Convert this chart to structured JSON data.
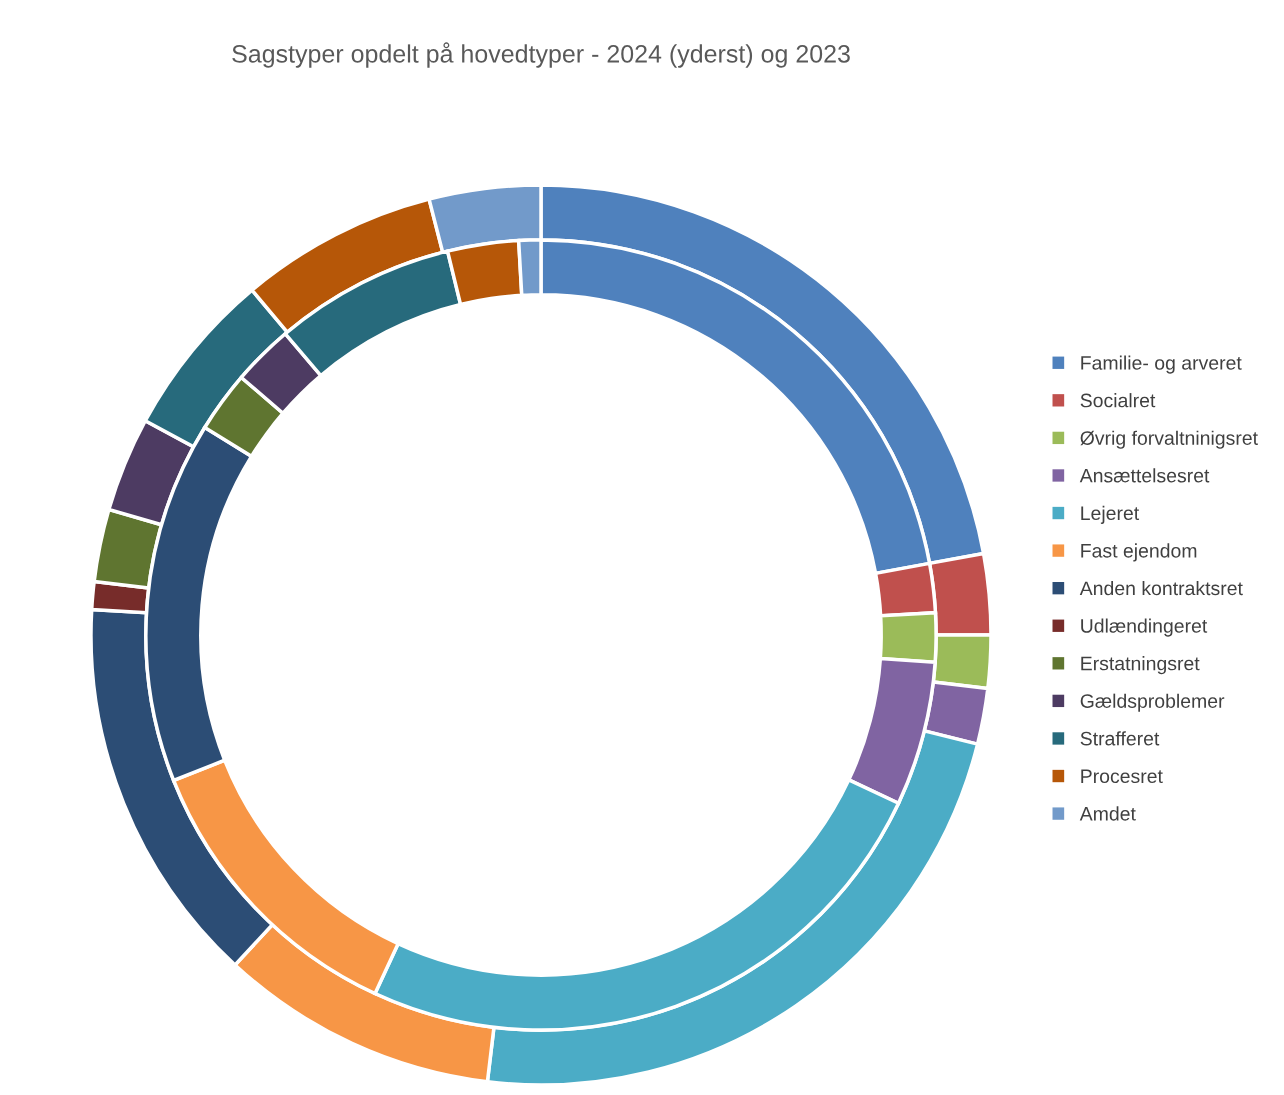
{
  "chart_data": {
    "type": "donut",
    "title": "Sagstyper opdelt på hovedtyper - 2024 (yderst) og 2023",
    "categories": [
      "Familie- og arveret",
      "Socialret",
      "Øvrig forvaltninigsret",
      "Ansættelsesret",
      "Lejeret",
      "Fast ejendom",
      "Anden kontraktsret",
      "Udlændingeret",
      "Erstatningsret",
      "Gældsproblemer",
      "Strafferet",
      "Procesret",
      "Amdet"
    ],
    "colors": [
      "#4f81bd",
      "#c0504d",
      "#9bbb59",
      "#8064a2",
      "#4bacc6",
      "#f79646",
      "#2c4d75",
      "#772c2a",
      "#5f7530",
      "#4d3b62",
      "#276a7c",
      "#b65708",
      "#729aca"
    ],
    "series": [
      {
        "values": [
          22.1,
          2.9,
          1.9,
          2.0,
          23.0,
          10.0,
          14.0,
          1.0,
          2.6,
          3.4,
          6.0,
          7.1,
          4.0
        ]
      },
      {
        "values": [
          22.1,
          2.0,
          2.0,
          5.9,
          24.9,
          12.1,
          14.8,
          0,
          2.5,
          2.5,
          7.4,
          2.9,
          0.9
        ]
      }
    ],
    "legend": "right"
  }
}
